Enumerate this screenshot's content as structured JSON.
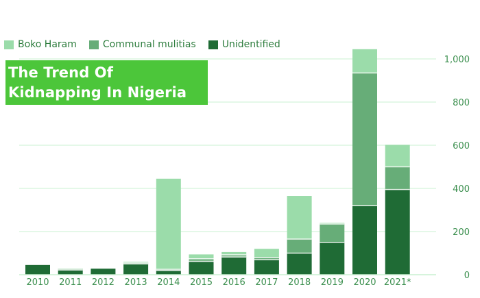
{
  "chart_data": {
    "type": "bar",
    "stacked": true,
    "title": "The Trend Of Kidnapping In Nigeria",
    "categories": [
      "2010",
      "2011",
      "2012",
      "2013",
      "2014",
      "2015",
      "2016",
      "2017",
      "2018",
      "2019",
      "2020",
      "2021*"
    ],
    "series": [
      {
        "name": "Unidentified",
        "color": "#1f6b35",
        "values": [
          45,
          22,
          28,
          50,
          20,
          62,
          82,
          70,
          100,
          150,
          320,
          395
        ]
      },
      {
        "name": "Communal mulitias",
        "color": "#67ad78",
        "values": [
          0,
          5,
          0,
          5,
          5,
          12,
          10,
          10,
          65,
          85,
          615,
          105
        ]
      },
      {
        "name": "Boko Haram",
        "color": "#9bdcaa",
        "values": [
          0,
          3,
          0,
          5,
          420,
          20,
          13,
          40,
          200,
          5,
          110,
          102
        ]
      }
    ],
    "yaxis": {
      "position": "right",
      "range": [
        0,
        1050
      ],
      "ticks": [
        0,
        200,
        400,
        600,
        800,
        1000
      ],
      "tick_labels": [
        "0",
        "200",
        "400",
        "600",
        "800",
        "1,000"
      ]
    },
    "grid": true,
    "legend": {
      "placement": "top-left",
      "order": [
        "Boko Haram",
        "Communal mulitias",
        "Unidentified"
      ]
    },
    "colors": {
      "title_background": "#4cc63a",
      "title_text": "#ffffff",
      "gridline": "#c8f0d0",
      "axis_text": "#3b8f4e"
    }
  }
}
